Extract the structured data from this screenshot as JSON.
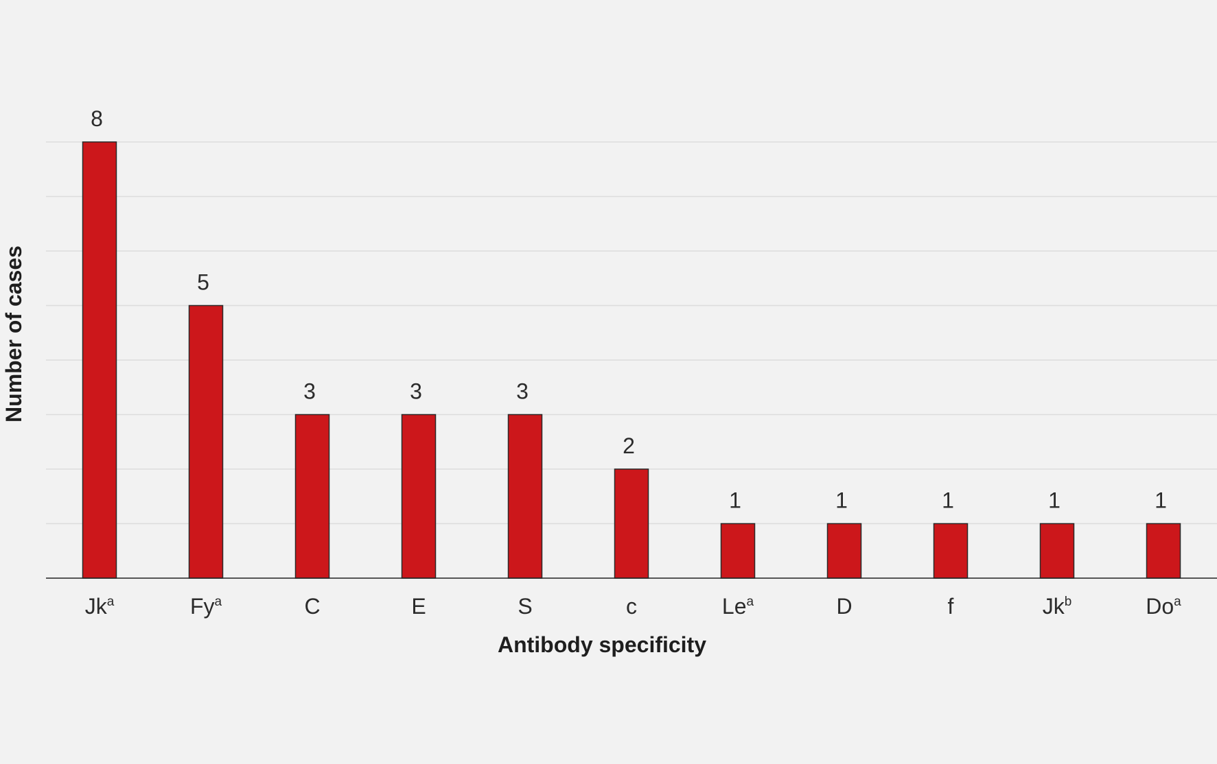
{
  "chart_data": {
    "type": "bar",
    "categories": [
      {
        "base": "Jk",
        "sup": "a"
      },
      {
        "base": "Fy",
        "sup": "a"
      },
      {
        "base": "C",
        "sup": ""
      },
      {
        "base": "E",
        "sup": ""
      },
      {
        "base": "S",
        "sup": ""
      },
      {
        "base": "c",
        "sup": ""
      },
      {
        "base": "Le",
        "sup": "a"
      },
      {
        "base": "D",
        "sup": ""
      },
      {
        "base": "f",
        "sup": ""
      },
      {
        "base": "Jk",
        "sup": "b"
      },
      {
        "base": "Do",
        "sup": "a"
      }
    ],
    "values": [
      8,
      5,
      3,
      3,
      3,
      2,
      1,
      1,
      1,
      1,
      1
    ],
    "data_labels": [
      "8",
      "5",
      "3",
      "3",
      "3",
      "2",
      "1",
      "1",
      "1",
      "1",
      "1"
    ],
    "xlabel": "Antibody specificity",
    "ylabel": "Number of cases",
    "ylim": [
      0,
      8
    ],
    "grid": true,
    "gridline_step": 1,
    "bar_color": "#cc171b",
    "bar_edge_color": "#2a2a2a",
    "background_color": "#f2f2f2"
  }
}
